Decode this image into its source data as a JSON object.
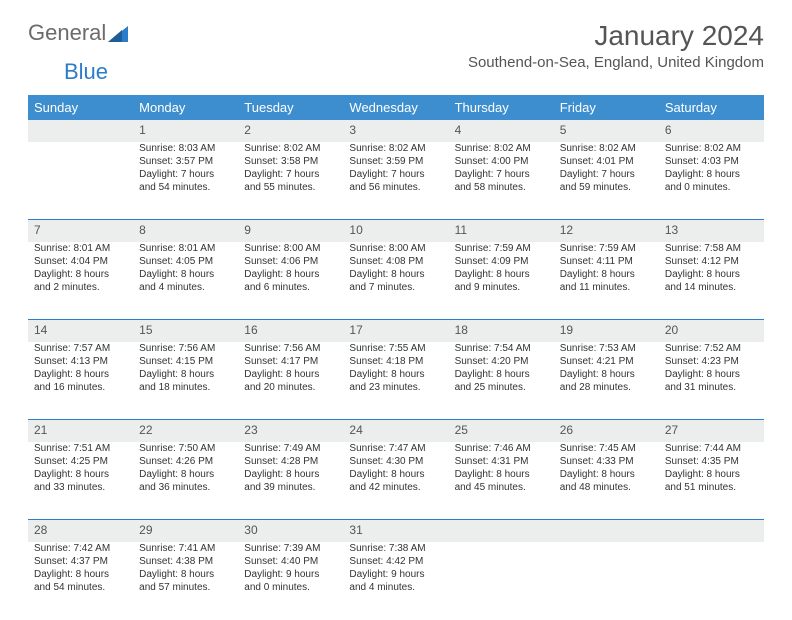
{
  "logo": {
    "word1": "General",
    "word2": "Blue"
  },
  "title": "January 2024",
  "location": "Southend-on-Sea, England, United Kingdom",
  "colors": {
    "header_bg": "#3d8ecf",
    "header_text": "#ffffff",
    "daynum_bg": "#eceeee",
    "rule": "#2c7dc9",
    "text": "#333333",
    "logo_gray": "#6b6b6b",
    "logo_blue": "#2c7dc9"
  },
  "typography": {
    "title_fontsize": 28,
    "location_fontsize": 15,
    "header_fontsize": 13,
    "daynum_fontsize": 12,
    "body_fontsize": 10
  },
  "dayNames": [
    "Sunday",
    "Monday",
    "Tuesday",
    "Wednesday",
    "Thursday",
    "Friday",
    "Saturday"
  ],
  "weeks": [
    {
      "nums": [
        "",
        "1",
        "2",
        "3",
        "4",
        "5",
        "6"
      ],
      "cells": [
        null,
        {
          "sunrise": "Sunrise: 8:03 AM",
          "sunset": "Sunset: 3:57 PM",
          "daylight": "Daylight: 7 hours and 54 minutes."
        },
        {
          "sunrise": "Sunrise: 8:02 AM",
          "sunset": "Sunset: 3:58 PM",
          "daylight": "Daylight: 7 hours and 55 minutes."
        },
        {
          "sunrise": "Sunrise: 8:02 AM",
          "sunset": "Sunset: 3:59 PM",
          "daylight": "Daylight: 7 hours and 56 minutes."
        },
        {
          "sunrise": "Sunrise: 8:02 AM",
          "sunset": "Sunset: 4:00 PM",
          "daylight": "Daylight: 7 hours and 58 minutes."
        },
        {
          "sunrise": "Sunrise: 8:02 AM",
          "sunset": "Sunset: 4:01 PM",
          "daylight": "Daylight: 7 hours and 59 minutes."
        },
        {
          "sunrise": "Sunrise: 8:02 AM",
          "sunset": "Sunset: 4:03 PM",
          "daylight": "Daylight: 8 hours and 0 minutes."
        }
      ]
    },
    {
      "nums": [
        "7",
        "8",
        "9",
        "10",
        "11",
        "12",
        "13"
      ],
      "cells": [
        {
          "sunrise": "Sunrise: 8:01 AM",
          "sunset": "Sunset: 4:04 PM",
          "daylight": "Daylight: 8 hours and 2 minutes."
        },
        {
          "sunrise": "Sunrise: 8:01 AM",
          "sunset": "Sunset: 4:05 PM",
          "daylight": "Daylight: 8 hours and 4 minutes."
        },
        {
          "sunrise": "Sunrise: 8:00 AM",
          "sunset": "Sunset: 4:06 PM",
          "daylight": "Daylight: 8 hours and 6 minutes."
        },
        {
          "sunrise": "Sunrise: 8:00 AM",
          "sunset": "Sunset: 4:08 PM",
          "daylight": "Daylight: 8 hours and 7 minutes."
        },
        {
          "sunrise": "Sunrise: 7:59 AM",
          "sunset": "Sunset: 4:09 PM",
          "daylight": "Daylight: 8 hours and 9 minutes."
        },
        {
          "sunrise": "Sunrise: 7:59 AM",
          "sunset": "Sunset: 4:11 PM",
          "daylight": "Daylight: 8 hours and 11 minutes."
        },
        {
          "sunrise": "Sunrise: 7:58 AM",
          "sunset": "Sunset: 4:12 PM",
          "daylight": "Daylight: 8 hours and 14 minutes."
        }
      ]
    },
    {
      "nums": [
        "14",
        "15",
        "16",
        "17",
        "18",
        "19",
        "20"
      ],
      "cells": [
        {
          "sunrise": "Sunrise: 7:57 AM",
          "sunset": "Sunset: 4:13 PM",
          "daylight": "Daylight: 8 hours and 16 minutes."
        },
        {
          "sunrise": "Sunrise: 7:56 AM",
          "sunset": "Sunset: 4:15 PM",
          "daylight": "Daylight: 8 hours and 18 minutes."
        },
        {
          "sunrise": "Sunrise: 7:56 AM",
          "sunset": "Sunset: 4:17 PM",
          "daylight": "Daylight: 8 hours and 20 minutes."
        },
        {
          "sunrise": "Sunrise: 7:55 AM",
          "sunset": "Sunset: 4:18 PM",
          "daylight": "Daylight: 8 hours and 23 minutes."
        },
        {
          "sunrise": "Sunrise: 7:54 AM",
          "sunset": "Sunset: 4:20 PM",
          "daylight": "Daylight: 8 hours and 25 minutes."
        },
        {
          "sunrise": "Sunrise: 7:53 AM",
          "sunset": "Sunset: 4:21 PM",
          "daylight": "Daylight: 8 hours and 28 minutes."
        },
        {
          "sunrise": "Sunrise: 7:52 AM",
          "sunset": "Sunset: 4:23 PM",
          "daylight": "Daylight: 8 hours and 31 minutes."
        }
      ]
    },
    {
      "nums": [
        "21",
        "22",
        "23",
        "24",
        "25",
        "26",
        "27"
      ],
      "cells": [
        {
          "sunrise": "Sunrise: 7:51 AM",
          "sunset": "Sunset: 4:25 PM",
          "daylight": "Daylight: 8 hours and 33 minutes."
        },
        {
          "sunrise": "Sunrise: 7:50 AM",
          "sunset": "Sunset: 4:26 PM",
          "daylight": "Daylight: 8 hours and 36 minutes."
        },
        {
          "sunrise": "Sunrise: 7:49 AM",
          "sunset": "Sunset: 4:28 PM",
          "daylight": "Daylight: 8 hours and 39 minutes."
        },
        {
          "sunrise": "Sunrise: 7:47 AM",
          "sunset": "Sunset: 4:30 PM",
          "daylight": "Daylight: 8 hours and 42 minutes."
        },
        {
          "sunrise": "Sunrise: 7:46 AM",
          "sunset": "Sunset: 4:31 PM",
          "daylight": "Daylight: 8 hours and 45 minutes."
        },
        {
          "sunrise": "Sunrise: 7:45 AM",
          "sunset": "Sunset: 4:33 PM",
          "daylight": "Daylight: 8 hours and 48 minutes."
        },
        {
          "sunrise": "Sunrise: 7:44 AM",
          "sunset": "Sunset: 4:35 PM",
          "daylight": "Daylight: 8 hours and 51 minutes."
        }
      ]
    },
    {
      "nums": [
        "28",
        "29",
        "30",
        "31",
        "",
        "",
        ""
      ],
      "cells": [
        {
          "sunrise": "Sunrise: 7:42 AM",
          "sunset": "Sunset: 4:37 PM",
          "daylight": "Daylight: 8 hours and 54 minutes."
        },
        {
          "sunrise": "Sunrise: 7:41 AM",
          "sunset": "Sunset: 4:38 PM",
          "daylight": "Daylight: 8 hours and 57 minutes."
        },
        {
          "sunrise": "Sunrise: 7:39 AM",
          "sunset": "Sunset: 4:40 PM",
          "daylight": "Daylight: 9 hours and 0 minutes."
        },
        {
          "sunrise": "Sunrise: 7:38 AM",
          "sunset": "Sunset: 4:42 PM",
          "daylight": "Daylight: 9 hours and 4 minutes."
        },
        null,
        null,
        null
      ]
    }
  ]
}
